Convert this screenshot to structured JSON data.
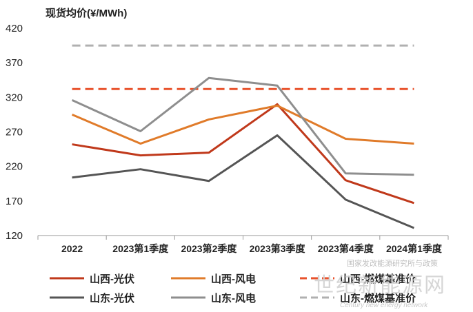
{
  "chart_data": {
    "type": "line",
    "ylabel": "现货均价(¥/MWh)",
    "ylim": [
      120,
      420
    ],
    "yticks": [
      120,
      170,
      220,
      270,
      320,
      370,
      420
    ],
    "categories": [
      "2022",
      "2023第1季度",
      "2023第2季度",
      "2023第3季度",
      "2023第4季度",
      "2024第1季度"
    ],
    "grid": false,
    "legend_position": "bottom",
    "series": [
      {
        "name": "山西-光伏",
        "color": "#c0391b",
        "style": "solid",
        "values": [
          252,
          236,
          240,
          310,
          200,
          167
        ]
      },
      {
        "name": "山西-风电",
        "color": "#e07b2a",
        "style": "solid",
        "values": [
          295,
          253,
          288,
          308,
          260,
          253
        ]
      },
      {
        "name": "山西-燃煤基准价",
        "color": "#e8522c",
        "style": "dashed",
        "values": [
          332,
          332,
          332,
          332,
          332,
          332
        ]
      },
      {
        "name": "山东-光伏",
        "color": "#555555",
        "style": "solid",
        "values": [
          204,
          216,
          199,
          265,
          172,
          131
        ]
      },
      {
        "name": "山东-风电",
        "color": "#8e8e8e",
        "style": "solid",
        "values": [
          316,
          271,
          348,
          337,
          210,
          208
        ]
      },
      {
        "name": "山东-燃煤基准价",
        "color": "#b0b0b0",
        "style": "dashed",
        "values": [
          395,
          395,
          395,
          395,
          395,
          395
        ]
      }
    ]
  },
  "watermark": {
    "line1": "国家发改能源研究所与政策",
    "line2": "世纪新能源网",
    "line3": "Century new energy network"
  }
}
